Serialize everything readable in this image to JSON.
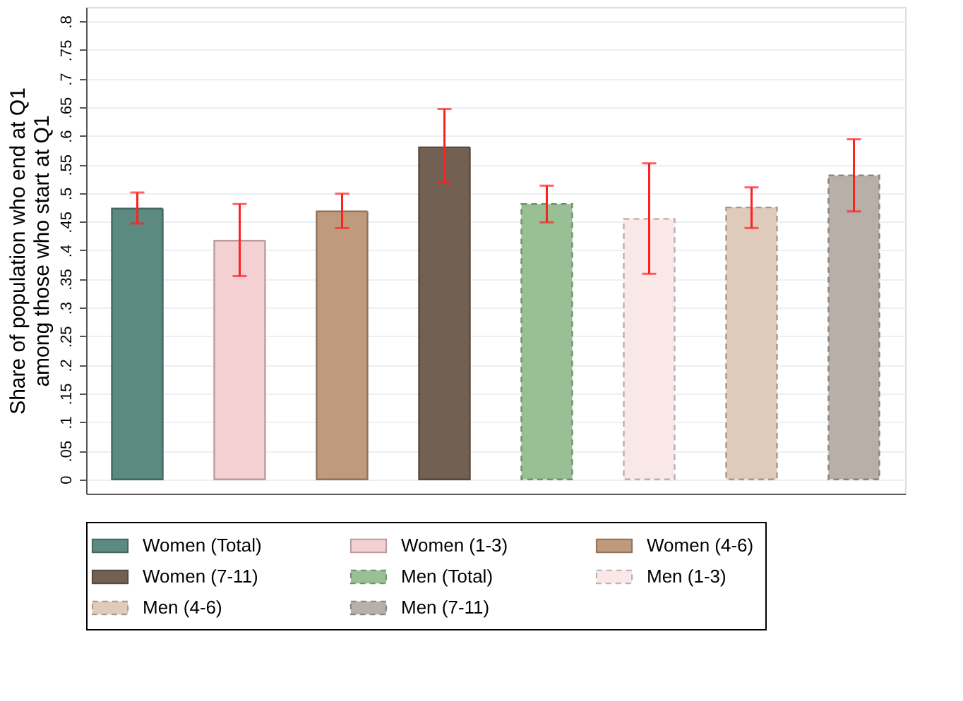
{
  "chart_data": {
    "type": "bar",
    "ylabel": "Share of population who end at Q1\namong those who start at Q1",
    "categories": [
      null,
      null,
      null,
      null,
      null,
      null,
      null,
      null
    ],
    "series": [
      {
        "name": "Women (Total)",
        "color": "#5a8a80",
        "line_style": "solid",
        "values": [
          0.473,
          null,
          null,
          null,
          null,
          null,
          null,
          null
        ],
        "errors": [
          [
            0.447,
            0.501
          ],
          null,
          null,
          null,
          null,
          null,
          null,
          null
        ]
      },
      {
        "name": "Women (1-3)",
        "color": "#f4d0d3",
        "line_style": "solid",
        "values": [
          null,
          0.417,
          null,
          null,
          null,
          null,
          null,
          null
        ],
        "errors": [
          null,
          [
            0.355,
            0.481
          ],
          null,
          null,
          null,
          null,
          null,
          null
        ]
      },
      {
        "name": "Women (4-6)",
        "color": "#bf9a7c",
        "line_style": "solid",
        "values": [
          null,
          null,
          0.468,
          null,
          null,
          null,
          null,
          null
        ],
        "errors": [
          null,
          null,
          [
            0.439,
            0.499
          ],
          null,
          null,
          null,
          null,
          null
        ]
      },
      {
        "name": "Women (7-11)",
        "color": "#726053",
        "line_style": "solid",
        "values": [
          null,
          null,
          null,
          0.58,
          null,
          null,
          null,
          null
        ],
        "errors": [
          null,
          null,
          null,
          [
            0.518,
            0.647
          ],
          null,
          null,
          null,
          null
        ]
      },
      {
        "name": "Men (Total)",
        "color": "#99bf94",
        "line_style": "dashed",
        "values": [
          null,
          null,
          null,
          null,
          0.481,
          null,
          null,
          null
        ],
        "errors": [
          null,
          null,
          null,
          null,
          [
            0.449,
            0.513
          ],
          null,
          null,
          null
        ]
      },
      {
        "name": "Men (1-3)",
        "color": "#fae8e8",
        "line_style": "dashed",
        "values": [
          null,
          null,
          null,
          null,
          null,
          0.455,
          null,
          null
        ],
        "errors": [
          null,
          null,
          null,
          null,
          null,
          [
            0.359,
            0.552
          ],
          null,
          null
        ]
      },
      {
        "name": "Men (4-6)",
        "color": "#dfcbbb",
        "line_style": "dashed",
        "values": [
          null,
          null,
          null,
          null,
          null,
          null,
          0.475,
          null
        ],
        "errors": [
          null,
          null,
          null,
          null,
          null,
          null,
          [
            0.439,
            0.51
          ],
          null
        ]
      },
      {
        "name": "Men (7-11)",
        "color": "#b8afa9",
        "line_style": "dashed",
        "values": [
          null,
          null,
          null,
          null,
          null,
          null,
          null,
          0.531
        ],
        "errors": [
          null,
          null,
          null,
          null,
          null,
          null,
          null,
          [
            0.468,
            0.594
          ]
        ]
      }
    ],
    "ylim": [
      -0.025,
      0.825
    ],
    "yticks": [
      0,
      {
        "value": 0.05,
        "label": ".05"
      },
      {
        "value": 0.1,
        "label": ".1"
      },
      {
        "value": 0.15,
        "label": ".15"
      },
      {
        "value": 0.2,
        "label": ".2"
      },
      {
        "value": 0.25,
        "label": ".25"
      },
      {
        "value": 0.3,
        "label": ".3"
      },
      {
        "value": 0.35,
        "label": ".35"
      },
      {
        "value": 0.4,
        "label": ".4"
      },
      {
        "value": 0.45,
        "label": ".45"
      },
      {
        "value": 0.5,
        "label": ".5"
      },
      {
        "value": 0.55,
        "label": ".55"
      },
      {
        "value": 0.6,
        "label": ".6"
      },
      {
        "value": 0.65,
        "label": ".65"
      },
      {
        "value": 0.7,
        "label": ".7"
      },
      {
        "value": 0.75,
        "label": ".75"
      },
      {
        "value": 0.8,
        "label": ".8"
      }
    ],
    "grid": "y",
    "legend": "bottom",
    "tick_labels": "y"
  }
}
